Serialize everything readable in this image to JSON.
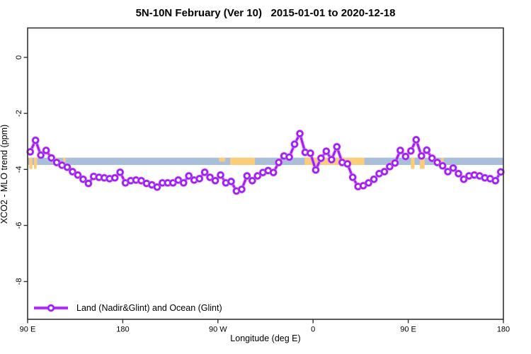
{
  "title": "5N-10N February (Ver 10)   2015-01-01 to 2020-12-18",
  "legend": {
    "label": "Land (Nadir&Glint) and Ocean (Glint)"
  },
  "colors": {
    "line": "#A020F0",
    "line_halo": "#D9A6F5",
    "marker_fill": "#FFFFFF",
    "reference_band": "#A9BFD9",
    "land": "#FACC7B",
    "axis": "#333333"
  },
  "chart_data": {
    "type": "line",
    "title": "5N-10N February (Ver 10)   2015-01-01 to 2020-12-18",
    "xlabel": "Longitude (deg E)",
    "ylabel": "XCO2 - MLO trend (ppm)",
    "legend_position": "bottom-left",
    "grid": false,
    "x_axis_span_deg": [
      90,
      540
    ],
    "y_range": [
      1.05,
      -9.35
    ],
    "x_ticks": [
      {
        "deg": 90,
        "label": "90 E"
      },
      {
        "deg": 180,
        "label": "180"
      },
      {
        "deg": 270,
        "label": "90 W"
      },
      {
        "deg": 360,
        "label": "0"
      },
      {
        "deg": 450,
        "label": "90 E"
      },
      {
        "deg": 540,
        "label": "180"
      }
    ],
    "y_ticks": [
      {
        "value": 0,
        "label": "0"
      },
      {
        "value": -2,
        "label": "-2"
      },
      {
        "value": -4,
        "label": "-4"
      },
      {
        "value": -6,
        "label": "-6"
      },
      {
        "value": -8,
        "label": "-8"
      }
    ],
    "reference_band": {
      "value_from": -3.58,
      "value_to": -3.84
    },
    "land_patches_deg": [
      {
        "from": 91.5,
        "to": 94.5,
        "part": "full"
      },
      {
        "from": 96,
        "to": 99,
        "part": "full"
      },
      {
        "from": 115.5,
        "to": 119,
        "part": "top"
      },
      {
        "from": 123.5,
        "to": 126,
        "part": "top"
      },
      {
        "from": 271,
        "to": 277,
        "part": "top"
      },
      {
        "from": 281.5,
        "to": 305,
        "part": "full"
      },
      {
        "from": 352,
        "to": 408.5,
        "part": "full"
      },
      {
        "from": 452.5,
        "to": 456,
        "part": "full"
      },
      {
        "from": 461,
        "to": 465.5,
        "part": "full"
      },
      {
        "from": 481,
        "to": 483.5,
        "part": "top"
      }
    ],
    "coast_dips_deg": [
      {
        "from": 91.5,
        "to": 94.5
      },
      {
        "from": 96,
        "to": 98.5
      },
      {
        "from": 361,
        "to": 364
      },
      {
        "from": 452.5,
        "to": 456
      },
      {
        "from": 461,
        "to": 465.5
      }
    ],
    "series": [
      {
        "name": "Land (Nadir&Glint) and Ocean (Glint)",
        "x_deg": [
          92.5,
          97.5,
          102.5,
          107.5,
          112.5,
          117.5,
          122.5,
          127.5,
          132.5,
          137.5,
          142.5,
          147.5,
          152.5,
          157.5,
          162.5,
          167.5,
          172.5,
          177.5,
          182.5,
          187.5,
          192.5,
          197.5,
          202.5,
          207.5,
          212.5,
          217.5,
          222.5,
          227.5,
          232.5,
          237.5,
          242.5,
          247.5,
          252.5,
          257.5,
          262.5,
          267.5,
          272.5,
          277.5,
          282.5,
          287.5,
          292.5,
          297.5,
          302.5,
          307.5,
          312.5,
          317.5,
          322.5,
          327.5,
          332.5,
          337.5,
          342.5,
          347.5,
          352.5,
          357.5,
          362.5,
          367.5,
          372.5,
          377.5,
          382.5,
          387.5,
          392.5,
          397.5,
          402.5,
          407.5,
          412.5,
          417.5,
          422.5,
          427.5,
          432.5,
          437.5,
          442.5,
          447.5,
          452.5,
          457.5,
          462.5,
          467.5,
          472.5,
          477.5,
          482.5,
          487.5,
          492.5,
          497.5,
          502.5,
          507.5,
          512.5,
          517.5,
          522.5,
          527.5,
          532.5,
          537.5
        ],
        "y": [
          -3.37,
          -2.96,
          -3.49,
          -3.32,
          -3.59,
          -3.75,
          -3.85,
          -3.92,
          -4.08,
          -4.2,
          -4.35,
          -4.5,
          -4.25,
          -4.28,
          -4.3,
          -4.33,
          -4.3,
          -4.1,
          -4.48,
          -4.4,
          -4.38,
          -4.4,
          -4.5,
          -4.55,
          -4.63,
          -4.48,
          -4.48,
          -4.48,
          -4.38,
          -4.48,
          -4.23,
          -4.38,
          -4.33,
          -4.1,
          -4.28,
          -4.4,
          -4.2,
          -4.48,
          -4.43,
          -4.77,
          -4.71,
          -4.23,
          -4.4,
          -4.23,
          -4.11,
          -4.04,
          -4.11,
          -3.75,
          -3.52,
          -3.56,
          -3.1,
          -2.72,
          -3.39,
          -3.42,
          -4.02,
          -3.6,
          -3.35,
          -3.65,
          -3.19,
          -3.75,
          -3.8,
          -4.28,
          -4.61,
          -4.58,
          -4.48,
          -4.35,
          -4.15,
          -4.08,
          -3.9,
          -3.77,
          -3.32,
          -3.54,
          -3.34,
          -2.94,
          -3.52,
          -3.31,
          -3.6,
          -3.75,
          -3.87,
          -4.08,
          -3.95,
          -4.15,
          -4.35,
          -4.23,
          -4.2,
          -4.23,
          -4.3,
          -4.33,
          -4.4,
          -4.09
        ]
      }
    ]
  }
}
